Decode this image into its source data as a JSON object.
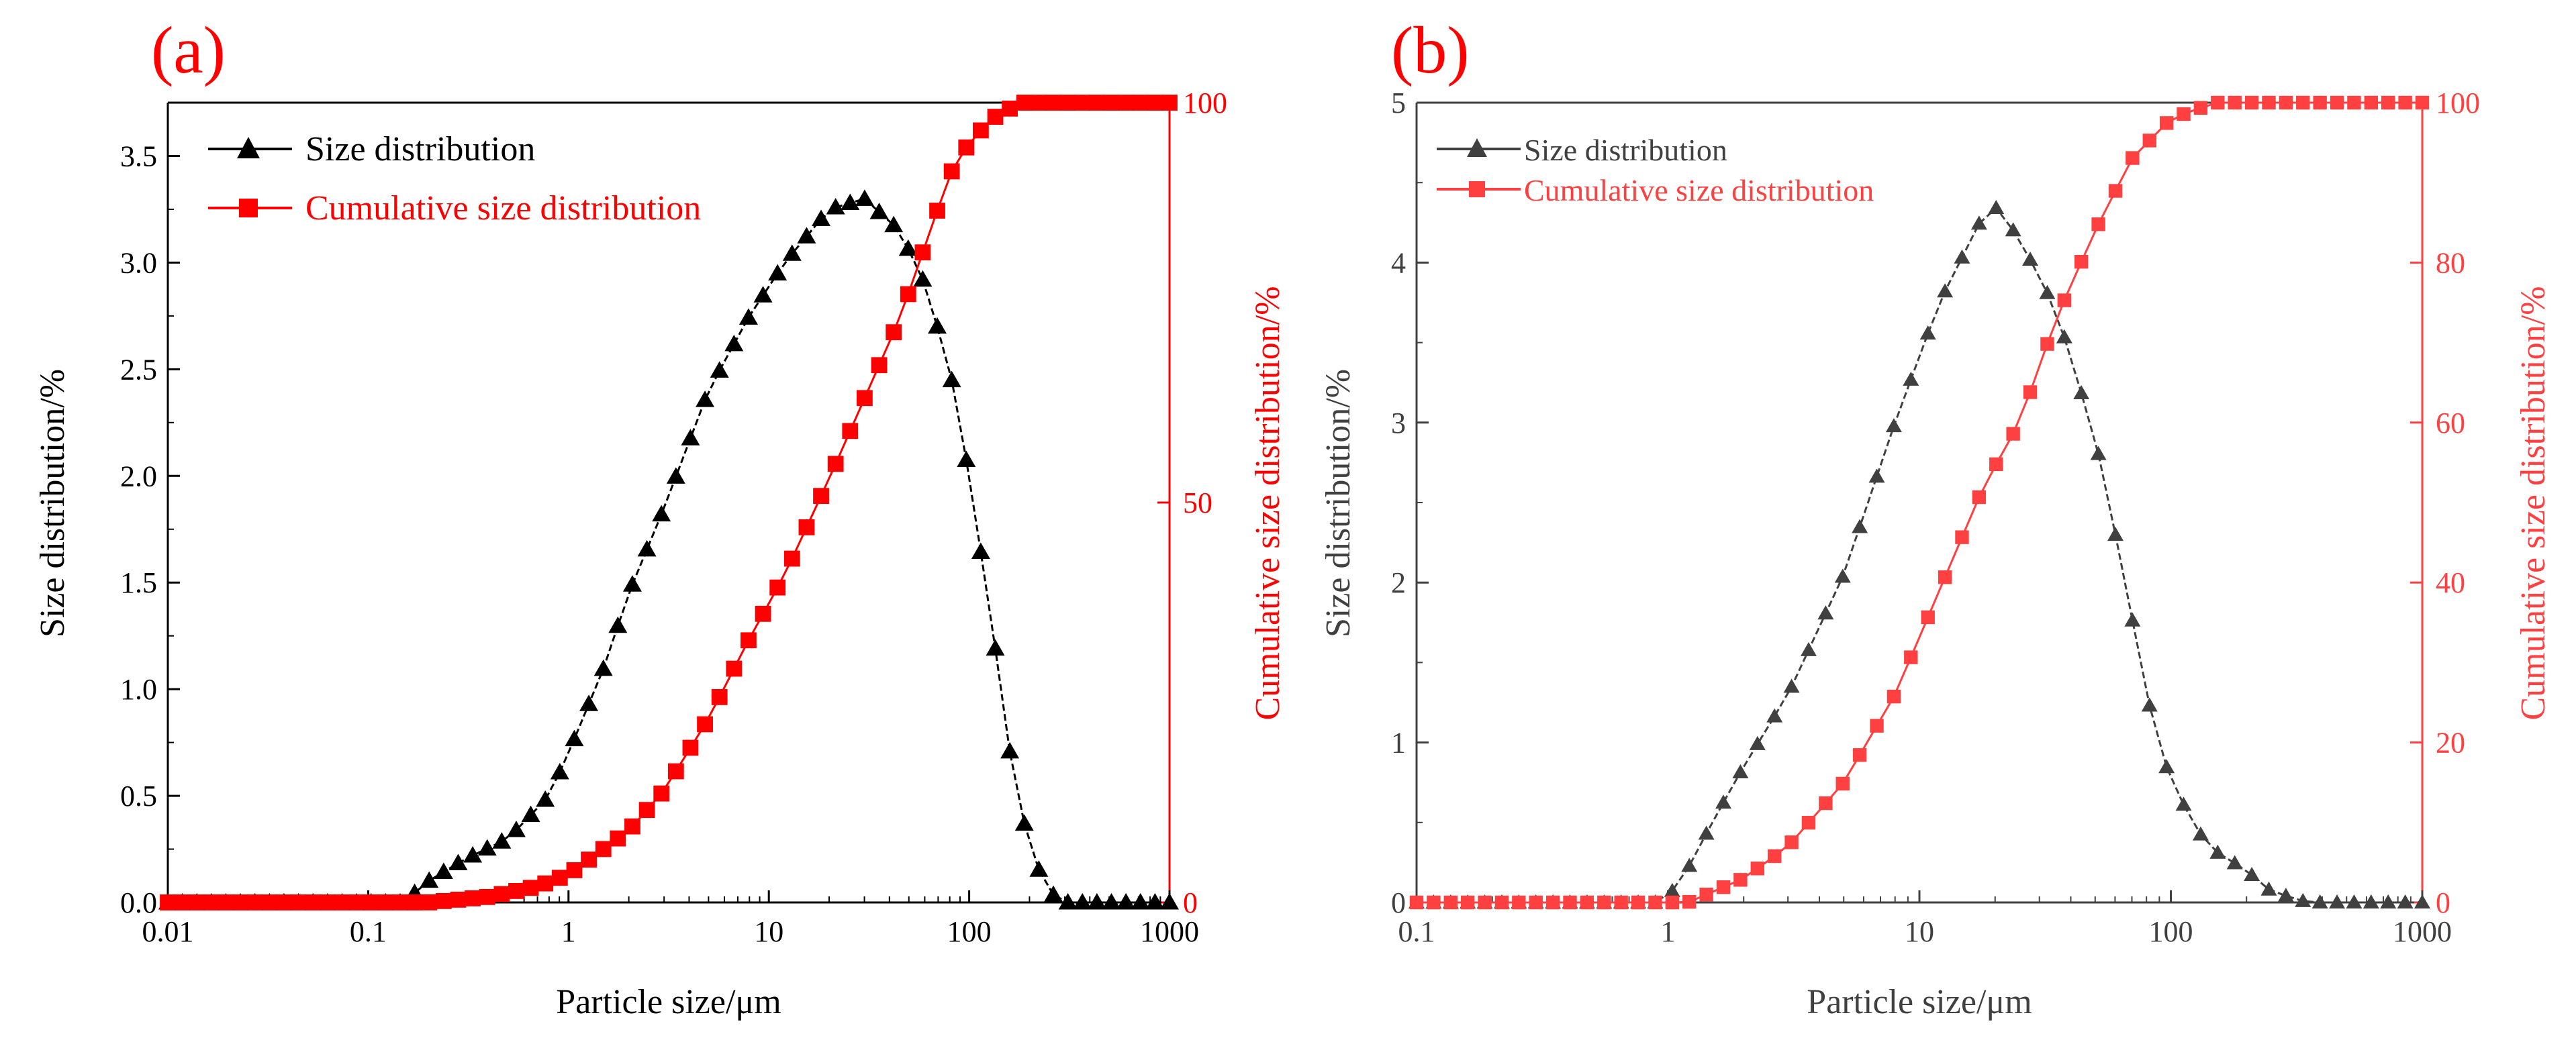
{
  "figure": {
    "panels": [
      {
        "panel_label": "(a)",
        "chart_data": {
          "type": "line",
          "x_scale": "log",
          "xlim": [
            0.01,
            1000
          ],
          "xlabel": "Particle size/μm",
          "ylabel_left": "Size distribution/%",
          "ylabel_right": "Cumulative size distribution/%",
          "ylim_left": [
            0,
            3.75
          ],
          "ylim_right": [
            0,
            100
          ],
          "x_ticks": [
            "0.01",
            "0.1",
            "1",
            "10",
            "100",
            "1000"
          ],
          "y_ticks_left": [
            "0.0",
            "0.5",
            "1.0",
            "1.5",
            "2.0",
            "2.5",
            "3.0",
            "3.5"
          ],
          "y_ticks_right": [
            "0",
            "50",
            "100"
          ],
          "legend_position": "top-left",
          "series": [
            {
              "name": "Size distribution",
              "axis": "left",
              "marker": "triangle",
              "color": "#000000",
              "x_range": [
                0.01,
                1000
              ],
              "num_points": 70,
              "points": [
                {
                  "x": 0.01,
                  "y": 0
                },
                {
                  "x": 0.15,
                  "y": 0
                },
                {
                  "x": 0.2,
                  "y": 0.1
                },
                {
                  "x": 0.3,
                  "y": 0.2
                },
                {
                  "x": 0.5,
                  "y": 0.3
                },
                {
                  "x": 0.8,
                  "y": 0.5
                },
                {
                  "x": 1,
                  "y": 0.7
                },
                {
                  "x": 1.5,
                  "y": 1.1
                },
                {
                  "x": 2,
                  "y": 1.45
                },
                {
                  "x": 3,
                  "y": 1.85
                },
                {
                  "x": 5,
                  "y": 2.4
                },
                {
                  "x": 8,
                  "y": 2.75
                },
                {
                  "x": 12,
                  "y": 3.0
                },
                {
                  "x": 20,
                  "y": 3.25
                },
                {
                  "x": 30,
                  "y": 3.3
                },
                {
                  "x": 45,
                  "y": 3.15
                },
                {
                  "x": 60,
                  "y": 2.9
                },
                {
                  "x": 80,
                  "y": 2.5
                },
                {
                  "x": 100,
                  "y": 2.0
                },
                {
                  "x": 130,
                  "y": 1.3
                },
                {
                  "x": 160,
                  "y": 0.7
                },
                {
                  "x": 200,
                  "y": 0.25
                },
                {
                  "x": 250,
                  "y": 0.05
                },
                {
                  "x": 300,
                  "y": 0
                },
                {
                  "x": 1000,
                  "y": 0
                }
              ]
            },
            {
              "name": "Cumulative size distribution",
              "axis": "right",
              "marker": "square",
              "color": "#ff0000",
              "x_range": [
                0.01,
                1000
              ],
              "num_points": 70,
              "points": [
                {
                  "x": 0.01,
                  "y": 0
                },
                {
                  "x": 0.2,
                  "y": 0
                },
                {
                  "x": 0.4,
                  "y": 0.7
                },
                {
                  "x": 0.7,
                  "y": 2
                },
                {
                  "x": 1,
                  "y": 3.5
                },
                {
                  "x": 2,
                  "y": 9
                },
                {
                  "x": 3,
                  "y": 14
                },
                {
                  "x": 5,
                  "y": 23
                },
                {
                  "x": 8,
                  "y": 33
                },
                {
                  "x": 12,
                  "y": 41
                },
                {
                  "x": 20,
                  "y": 53
                },
                {
                  "x": 30,
                  "y": 63
                },
                {
                  "x": 45,
                  "y": 73
                },
                {
                  "x": 60,
                  "y": 82
                },
                {
                  "x": 80,
                  "y": 91
                },
                {
                  "x": 100,
                  "y": 95
                },
                {
                  "x": 130,
                  "y": 98
                },
                {
                  "x": 180,
                  "y": 100
                },
                {
                  "x": 1000,
                  "y": 100
                }
              ]
            }
          ]
        }
      },
      {
        "panel_label": "(b)",
        "chart_data": {
          "type": "line",
          "x_scale": "log",
          "xlim": [
            0.1,
            1000
          ],
          "xlabel": "Particle size/μm",
          "ylabel_left": "Size distribution/%",
          "ylabel_right": "Cumulative size distribution/%",
          "ylim_left": [
            0,
            5
          ],
          "ylim_right": [
            0,
            100
          ],
          "x_ticks": [
            "0.1",
            "1",
            "10",
            "100",
            "1000"
          ],
          "y_ticks_left": [
            "0",
            "1",
            "2",
            "3",
            "4",
            "5"
          ],
          "y_ticks_right": [
            "0",
            "20",
            "40",
            "60",
            "80",
            "100"
          ],
          "legend_position": "top-left",
          "series": [
            {
              "name": "Size distribution",
              "axis": "left",
              "marker": "triangle",
              "color": "#404040",
              "x_range": [
                0.1,
                1000
              ],
              "num_points": 60,
              "points": [
                {
                  "x": 0.1,
                  "y": 0
                },
                {
                  "x": 0.9,
                  "y": 0
                },
                {
                  "x": 1.1,
                  "y": 0.1
                },
                {
                  "x": 1.5,
                  "y": 0.5
                },
                {
                  "x": 2,
                  "y": 0.85
                },
                {
                  "x": 3,
                  "y": 1.3
                },
                {
                  "x": 5,
                  "y": 2.05
                },
                {
                  "x": 8,
                  "y": 3.0
                },
                {
                  "x": 12,
                  "y": 3.75
                },
                {
                  "x": 18,
                  "y": 4.3
                },
                {
                  "x": 20,
                  "y": 4.35
                },
                {
                  "x": 25,
                  "y": 4.15
                },
                {
                  "x": 35,
                  "y": 3.7
                },
                {
                  "x": 50,
                  "y": 2.9
                },
                {
                  "x": 65,
                  "y": 2.05
                },
                {
                  "x": 80,
                  "y": 1.3
                },
                {
                  "x": 100,
                  "y": 0.75
                },
                {
                  "x": 140,
                  "y": 0.35
                },
                {
                  "x": 200,
                  "y": 0.2
                },
                {
                  "x": 250,
                  "y": 0.07
                },
                {
                  "x": 350,
                  "y": 0
                },
                {
                  "x": 1000,
                  "y": 0
                }
              ]
            },
            {
              "name": "Cumulative size distribution",
              "axis": "right",
              "marker": "square",
              "color": "#ff4040",
              "x_range": [
                0.1,
                1000
              ],
              "num_points": 60,
              "points": [
                {
                  "x": 0.1,
                  "y": 0
                },
                {
                  "x": 1.2,
                  "y": 0
                },
                {
                  "x": 2,
                  "y": 3
                },
                {
                  "x": 3,
                  "y": 7
                },
                {
                  "x": 5,
                  "y": 15
                },
                {
                  "x": 8,
                  "y": 26
                },
                {
                  "x": 12,
                  "y": 39
                },
                {
                  "x": 18,
                  "y": 52
                },
                {
                  "x": 25,
                  "y": 60
                },
                {
                  "x": 35,
                  "y": 73
                },
                {
                  "x": 50,
                  "y": 84
                },
                {
                  "x": 70,
                  "y": 93
                },
                {
                  "x": 100,
                  "y": 98
                },
                {
                  "x": 150,
                  "y": 100
                },
                {
                  "x": 1000,
                  "y": 100
                }
              ]
            }
          ]
        }
      }
    ]
  }
}
